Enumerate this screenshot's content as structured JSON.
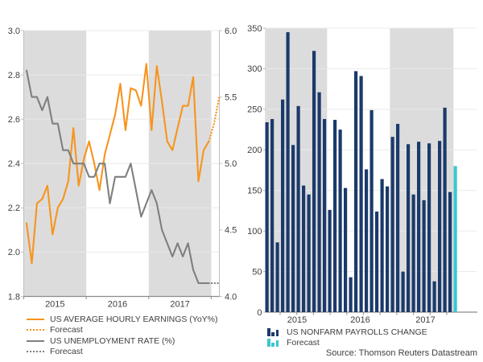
{
  "source_note": "Source: Thomson Reuters Datastream",
  "colors": {
    "orange": "#F7941E",
    "gray": "#7F7F7F",
    "navy": "#1B3A6B",
    "cyan": "#3BC6D0",
    "band": "#DCDCDC",
    "grid": "#E9E9E9",
    "spine": "#C0C0C0",
    "axis": "#8C8C8C",
    "text": "#404040"
  },
  "chart_data": [
    {
      "type": "line",
      "title": "",
      "x_year_labels": [
        "2015",
        "2016",
        "2017"
      ],
      "shaded_years": [
        "2015",
        "2017"
      ],
      "x_range_months": 38,
      "y_left": {
        "label": "",
        "range": [
          1.8,
          3.0
        ],
        "ticks": [
          {
            "label": "3.0",
            "v": 3.0
          },
          {
            "label": "2.8",
            "v": 2.8
          },
          {
            "label": "2.6",
            "v": 2.6
          },
          {
            "label": "2.4",
            "v": 2.4
          },
          {
            "label": "2.2",
            "v": 2.2
          },
          {
            "label": "2.0",
            "v": 2.0
          },
          {
            "label": "1.8",
            "v": 1.8
          }
        ]
      },
      "y_right": {
        "range": [
          4.0,
          6.0
        ],
        "ticks": [
          {
            "label": "6.0",
            "v": 6.0
          },
          {
            "label": "5.5",
            "v": 5.5
          },
          {
            "label": "5.0",
            "v": 5.0
          },
          {
            "label": "4.5",
            "v": 4.5
          },
          {
            "label": "4.0",
            "v": 4.0
          }
        ]
      },
      "series": [
        {
          "name": "US AVERAGE HOURLY EARNINGS (YoY%)",
          "axis": "left",
          "style": "solid",
          "color_key": "orange",
          "start_index": 0,
          "values": [
            2.13,
            1.95,
            2.22,
            2.24,
            2.3,
            2.08,
            2.2,
            2.24,
            2.32,
            2.56,
            2.3,
            2.42,
            2.5,
            2.4,
            2.28,
            2.44,
            2.53,
            2.62,
            2.76,
            2.55,
            2.74,
            2.73,
            2.66,
            2.85,
            2.55,
            2.84,
            2.68,
            2.5,
            2.46,
            2.56,
            2.66,
            2.66,
            2.79,
            2.32,
            2.46,
            2.5
          ]
        },
        {
          "name": "Forecast",
          "axis": "left",
          "style": "dotted",
          "color_key": "orange",
          "start_index": 35,
          "values": [
            2.5,
            2.58,
            2.7
          ]
        },
        {
          "name": "US UNEMPLOYMENT RATE (%)",
          "axis": "right",
          "style": "solid",
          "color_key": "gray",
          "start_index": 0,
          "values": [
            5.7,
            5.5,
            5.5,
            5.4,
            5.5,
            5.3,
            5.3,
            5.1,
            5.1,
            5.0,
            5.0,
            5.0,
            4.9,
            4.9,
            5.0,
            5.0,
            4.7,
            4.9,
            4.9,
            4.9,
            5.0,
            4.8,
            4.6,
            4.7,
            4.8,
            4.7,
            4.5,
            4.4,
            4.3,
            4.4,
            4.3,
            4.4,
            4.2,
            4.1,
            4.1,
            4.1
          ]
        },
        {
          "name": "Forecast",
          "axis": "right",
          "style": "dotted",
          "color_key": "gray",
          "start_index": 35,
          "values": [
            4.1,
            4.1,
            4.1
          ]
        }
      ]
    },
    {
      "type": "bar",
      "title": "",
      "x_year_labels": [
        "2015",
        "2016",
        "2017"
      ],
      "shaded_years": [
        "2015",
        "2017"
      ],
      "y": {
        "range": [
          0,
          350
        ],
        "ticks": [
          {
            "label": "350",
            "v": 350
          },
          {
            "label": "300",
            "v": 300
          },
          {
            "label": "250",
            "v": 250
          },
          {
            "label": "200",
            "v": 200
          },
          {
            "label": "150",
            "v": 150
          },
          {
            "label": "100",
            "v": 100
          },
          {
            "label": "50",
            "v": 50
          },
          {
            "label": "0",
            "v": 0
          }
        ]
      },
      "series": [
        {
          "name": "US NONFARM PAYROLLS CHANGE",
          "color_key": "navy",
          "values": [
            234,
            238,
            86,
            262,
            345,
            206,
            254,
            156,
            145,
            322,
            271,
            238,
            126,
            237,
            225,
            153,
            43,
            297,
            291,
            176,
            249,
            124,
            164,
            155,
            216,
            232,
            50,
            207,
            145,
            210,
            138,
            208,
            38,
            211,
            252,
            148
          ]
        },
        {
          "name": "Forecast",
          "color_key": "cyan",
          "values": [
            180
          ]
        }
      ]
    }
  ]
}
